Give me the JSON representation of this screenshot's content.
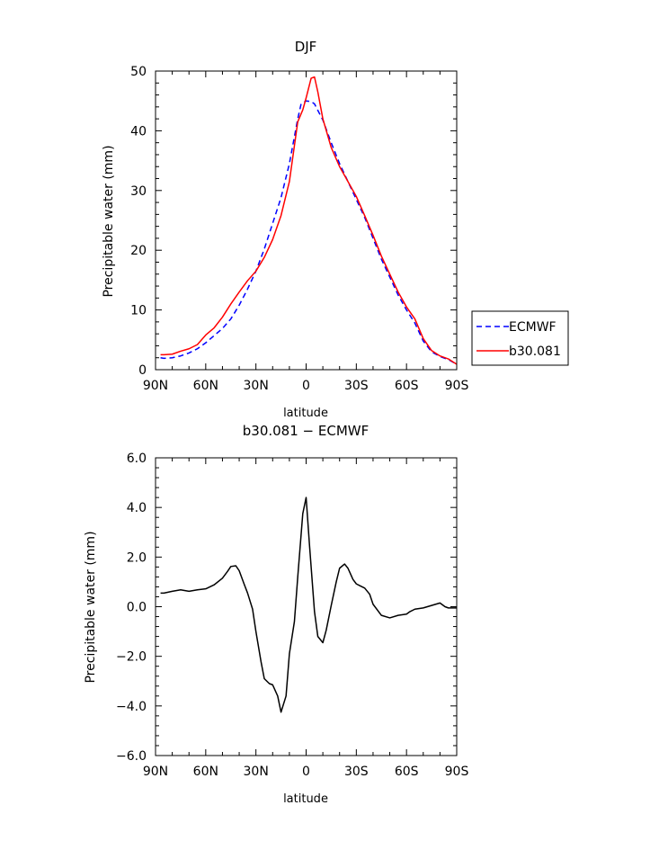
{
  "chart_data": [
    {
      "type": "line",
      "title": "DJF",
      "xlabel": "latitude",
      "ylabel": "Precipitable water (mm)",
      "xlim": [
        -90,
        90
      ],
      "ylim": [
        0,
        50
      ],
      "x_ticks": [
        -90,
        -60,
        -30,
        0,
        30,
        60,
        90
      ],
      "x_tick_labels": [
        "90N",
        "60N",
        "30N",
        "0",
        "30S",
        "60S",
        "90S"
      ],
      "y_ticks": [
        0,
        10,
        20,
        30,
        40,
        50
      ],
      "y_tick_labels": [
        "0",
        "10",
        "20",
        "30",
        "40",
        "50"
      ],
      "grid": false,
      "legend_position": "right",
      "series": [
        {
          "name": "ECMWF",
          "color": "#0000ff",
          "dash": "dashed",
          "x": [
            -87,
            -85,
            -80,
            -75,
            -70,
            -65,
            -60,
            -55,
            -50,
            -45,
            -40,
            -35,
            -30,
            -25,
            -20,
            -15,
            -10,
            -5,
            -3,
            0,
            3,
            5,
            10,
            15,
            20,
            25,
            30,
            35,
            40,
            45,
            50,
            55,
            60,
            65,
            70,
            75,
            80,
            85,
            90
          ],
          "y": [
            2.0,
            1.9,
            2.0,
            2.3,
            2.8,
            3.5,
            4.5,
            5.7,
            6.9,
            8.5,
            10.8,
            13.5,
            16.5,
            20.2,
            24.5,
            28.8,
            34.5,
            42.0,
            44.5,
            45.0,
            44.9,
            44.5,
            41.8,
            38.0,
            34.5,
            31.5,
            28.5,
            25.5,
            22.0,
            18.5,
            15.5,
            12.5,
            10.0,
            7.8,
            4.8,
            3.0,
            2.2,
            1.7,
            0.9
          ]
        },
        {
          "name": "b30.081",
          "color": "#ff0000",
          "dash": "solid",
          "x": [
            -87,
            -85,
            -80,
            -75,
            -70,
            -65,
            -60,
            -55,
            -50,
            -45,
            -40,
            -35,
            -30,
            -25,
            -20,
            -15,
            -10,
            -5,
            -2,
            0,
            3,
            5,
            7,
            10,
            15,
            20,
            25,
            30,
            35,
            40,
            45,
            50,
            55,
            60,
            65,
            70,
            75,
            80,
            85,
            90
          ],
          "y": [
            2.5,
            2.5,
            2.6,
            3.1,
            3.5,
            4.2,
            5.8,
            7.0,
            8.8,
            11.0,
            13.0,
            14.9,
            16.5,
            18.8,
            21.8,
            25.8,
            31.5,
            41.5,
            43.5,
            45.5,
            48.8,
            49.0,
            46.5,
            42.0,
            37.2,
            34.0,
            31.5,
            29.0,
            25.8,
            22.5,
            19.0,
            16.0,
            13.0,
            10.5,
            8.5,
            5.2,
            3.2,
            2.3,
            1.8,
            0.9
          ]
        }
      ]
    },
    {
      "type": "line",
      "title": "b30.081 − ECMWF",
      "xlabel": "latitude",
      "ylabel": "Precipitable water (mm)",
      "xlim": [
        -90,
        90
      ],
      "ylim": [
        -6,
        6
      ],
      "x_ticks": [
        -90,
        -60,
        -30,
        0,
        30,
        60,
        90
      ],
      "x_tick_labels": [
        "90N",
        "60N",
        "30N",
        "0",
        "30S",
        "60S",
        "90S"
      ],
      "y_ticks": [
        -6,
        -4,
        -2,
        0,
        2,
        4,
        6
      ],
      "y_tick_labels": [
        "−6.0",
        "−4.0",
        "−2.0",
        "0.0",
        "2.0",
        "4.0",
        "6.0"
      ],
      "grid": false,
      "series": [
        {
          "color": "#000000",
          "dash": "solid",
          "x": [
            -87,
            -85,
            -80,
            -75,
            -70,
            -65,
            -60,
            -55,
            -50,
            -47,
            -45,
            -42,
            -40,
            -37,
            -35,
            -32,
            -30,
            -27,
            -25,
            -22,
            -20,
            -17,
            -15,
            -12,
            -10,
            -7,
            -5,
            -2,
            0,
            2,
            5,
            7,
            10,
            12,
            15,
            18,
            20,
            23,
            25,
            28,
            30,
            32,
            35,
            38,
            40,
            45,
            50,
            55,
            60,
            62,
            65,
            70,
            75,
            80,
            83,
            85,
            87,
            90
          ],
          "y": [
            0.55,
            0.55,
            0.62,
            0.68,
            0.62,
            0.68,
            0.72,
            0.88,
            1.15,
            1.42,
            1.62,
            1.65,
            1.45,
            0.9,
            0.55,
            -0.1,
            -1.0,
            -2.2,
            -2.9,
            -3.1,
            -3.15,
            -3.6,
            -4.25,
            -3.6,
            -1.9,
            -0.6,
            1.2,
            3.75,
            4.4,
            2.5,
            -0.2,
            -1.2,
            -1.45,
            -0.95,
            0.05,
            1.0,
            1.55,
            1.72,
            1.55,
            1.1,
            0.92,
            0.85,
            0.75,
            0.5,
            0.1,
            -0.35,
            -0.45,
            -0.35,
            -0.3,
            -0.2,
            -0.1,
            -0.05,
            0.05,
            0.15,
            0.0,
            -0.05,
            -0.05,
            -0.05
          ]
        }
      ]
    }
  ]
}
